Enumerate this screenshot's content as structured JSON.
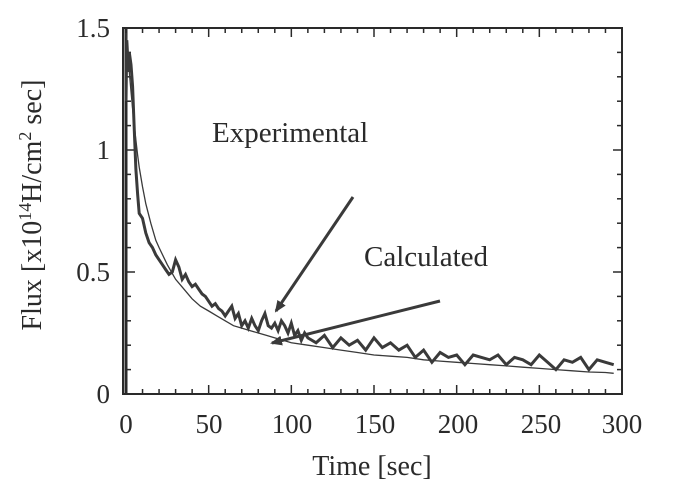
{
  "chart_data": {
    "type": "line",
    "title": "",
    "xlabel": "Time [sec]",
    "ylabel_parts": {
      "prefix": "Flux [x10",
      "sup1": "14",
      "mid": "H/cm",
      "sup2": "2",
      "suffix": " sec]"
    },
    "xlim": [
      0,
      300
    ],
    "ylim": [
      0,
      1.5
    ],
    "x_ticks": [
      "0",
      "50",
      "100",
      "150",
      "200",
      "250",
      "300"
    ],
    "y_ticks": [
      "0",
      "0.5",
      "1",
      "1.5"
    ],
    "grid": false,
    "legend": "none",
    "annotations": {
      "experimental": "Experimental",
      "calculated": "Calculated"
    },
    "series": [
      {
        "name": "Experimental",
        "x": [
          0,
          0.5,
          1,
          1.5,
          2,
          3,
          4,
          5,
          6,
          7,
          8,
          10,
          12,
          14,
          16,
          18,
          20,
          22,
          24,
          26,
          28,
          30,
          32,
          34,
          36,
          38,
          40,
          42,
          44,
          46,
          48,
          50,
          52,
          54,
          56,
          58,
          60,
          62,
          64,
          66,
          68,
          70,
          72,
          74,
          76,
          78,
          80,
          82,
          84,
          86,
          88,
          90,
          92,
          94,
          96,
          98,
          100,
          102,
          104,
          106,
          108,
          110,
          115,
          120,
          125,
          130,
          135,
          140,
          145,
          150,
          155,
          160,
          165,
          170,
          175,
          180,
          185,
          190,
          195,
          200,
          205,
          210,
          215,
          220,
          225,
          230,
          235,
          240,
          245,
          250,
          255,
          260,
          265,
          270,
          275,
          280,
          285,
          290,
          295
        ],
        "y": [
          1.2,
          1.45,
          1.38,
          1.32,
          1.4,
          1.35,
          1.26,
          1.08,
          0.92,
          0.82,
          0.74,
          0.72,
          0.66,
          0.62,
          0.6,
          0.57,
          0.55,
          0.53,
          0.51,
          0.49,
          0.5,
          0.55,
          0.52,
          0.47,
          0.49,
          0.46,
          0.44,
          0.45,
          0.43,
          0.41,
          0.4,
          0.38,
          0.36,
          0.37,
          0.35,
          0.34,
          0.32,
          0.34,
          0.36,
          0.31,
          0.33,
          0.28,
          0.3,
          0.27,
          0.31,
          0.28,
          0.26,
          0.3,
          0.33,
          0.28,
          0.27,
          0.29,
          0.26,
          0.3,
          0.28,
          0.25,
          0.29,
          0.24,
          0.26,
          0.22,
          0.25,
          0.23,
          0.21,
          0.24,
          0.19,
          0.23,
          0.2,
          0.22,
          0.18,
          0.23,
          0.19,
          0.21,
          0.18,
          0.2,
          0.15,
          0.18,
          0.13,
          0.17,
          0.15,
          0.16,
          0.12,
          0.16,
          0.15,
          0.14,
          0.16,
          0.12,
          0.15,
          0.14,
          0.12,
          0.16,
          0.13,
          0.1,
          0.14,
          0.13,
          0.15,
          0.1,
          0.14,
          0.13,
          0.12
        ],
        "color": "#3a3a3a"
      },
      {
        "name": "Calculated",
        "x": [
          0,
          1,
          2,
          3,
          4,
          5,
          6,
          7,
          8,
          10,
          12,
          15,
          18,
          20,
          25,
          30,
          35,
          40,
          45,
          50,
          55,
          60,
          65,
          70,
          75,
          80,
          85,
          90,
          95,
          100,
          110,
          120,
          130,
          140,
          150,
          160,
          170,
          180,
          190,
          200,
          210,
          220,
          230,
          240,
          250,
          260,
          270,
          280,
          290,
          295
        ],
        "y": [
          1.48,
          1.4,
          1.32,
          1.24,
          1.17,
          1.1,
          1.04,
          0.98,
          0.93,
          0.85,
          0.78,
          0.7,
          0.63,
          0.6,
          0.53,
          0.47,
          0.43,
          0.39,
          0.36,
          0.34,
          0.32,
          0.3,
          0.28,
          0.27,
          0.26,
          0.25,
          0.24,
          0.23,
          0.22,
          0.21,
          0.2,
          0.19,
          0.18,
          0.17,
          0.16,
          0.155,
          0.15,
          0.14,
          0.135,
          0.13,
          0.125,
          0.12,
          0.115,
          0.11,
          0.105,
          0.1,
          0.095,
          0.09,
          0.088,
          0.085
        ],
        "color": "#3a3a3a"
      }
    ],
    "colors": {
      "axis": "#2a2a2a",
      "line": "#3a3a3a"
    }
  }
}
